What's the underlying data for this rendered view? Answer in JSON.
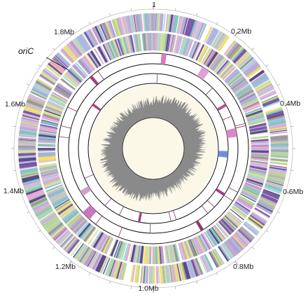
{
  "genome_map": {
    "position_labels": [
      "1",
      "0.2Mb",
      "0.4Mb",
      "0.6Mb",
      "0.8Mb",
      "1.0Mb",
      "1.2Mb",
      "1.4Mb",
      "1.6Mb",
      "1.8Mb"
    ],
    "origin_label": "oriC",
    "total_ticks": 40,
    "gene_color_palette": [
      "#b8a0c8",
      "#7a5aa8",
      "#a8d8d8",
      "#c8c8c8",
      "#d8e098",
      "#e8a8d8",
      "#a8b8e8",
      "#b8d890",
      "#f0e070",
      "#9a9a9a",
      "#80c8c0",
      "#c0a8d8",
      "#5a4a8a",
      "#d8b8e0"
    ],
    "gc_skew_color": "#8a8a8a",
    "center_fill": "#fbf8e8",
    "rings": [
      "forward-strand-genes",
      "reverse-strand-genes",
      "feature-ring-1",
      "feature-ring-2",
      "feature-ring-3",
      "gc-skew"
    ]
  }
}
